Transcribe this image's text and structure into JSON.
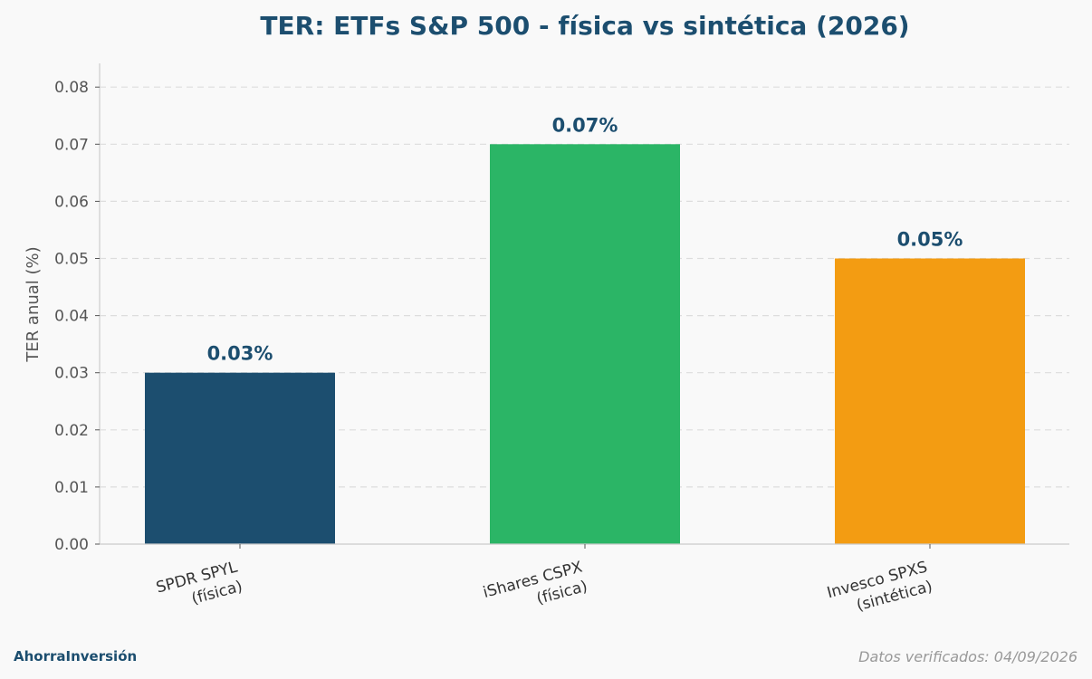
{
  "chart_data": {
    "type": "bar",
    "title": "TER: ETFs S&P 500 - física vs sintética (2026)",
    "ylabel": "TER anual (%)",
    "xlabel": "",
    "ylim": [
      0,
      0.084
    ],
    "y_ticks": [
      "0.00",
      "0.01",
      "0.02",
      "0.03",
      "0.04",
      "0.05",
      "0.06",
      "0.07",
      "0.08"
    ],
    "categories": [
      [
        "SPDR SPYL",
        "(física)"
      ],
      [
        "iShares CSPX",
        "(física)"
      ],
      [
        "Invesco SPXS",
        "(sintética)"
      ]
    ],
    "values": [
      0.03,
      0.07,
      0.05
    ],
    "data_labels": [
      "0.03%",
      "0.07%",
      "0.05%"
    ],
    "colors": [
      "#1c4e6f",
      "#2bb566",
      "#f39c12"
    ],
    "grid": true,
    "legend": "none"
  },
  "footer": {
    "brand": "AhorraInversión",
    "verified": "Datos verificados: 04/09/2026"
  }
}
